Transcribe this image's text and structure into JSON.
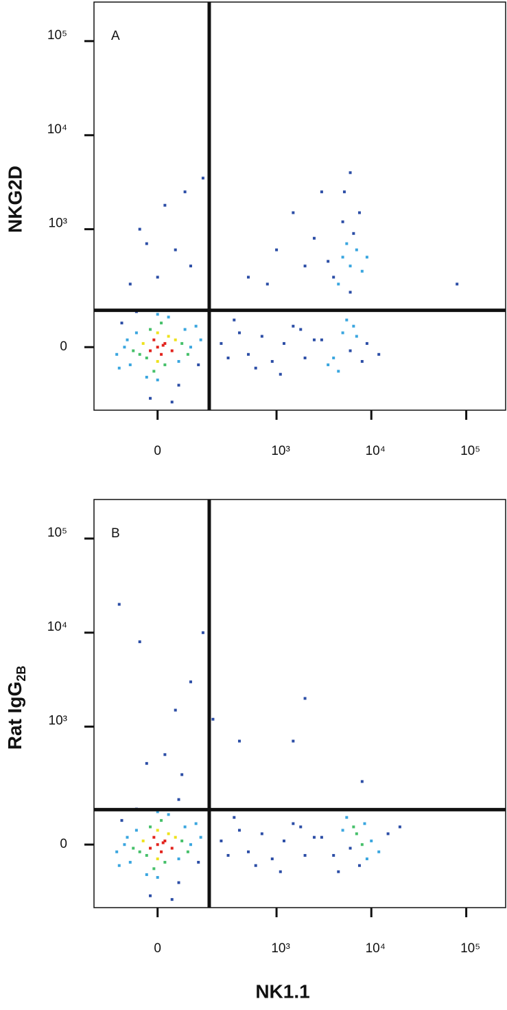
{
  "chart_data": [
    {
      "type": "scatter",
      "panel_label": "A",
      "ylabel": "NKG2D",
      "xscale": "biexponential",
      "yscale": "biexponential",
      "xlim": [
        -250,
        260000
      ],
      "ylim": [
        -250,
        260000
      ],
      "xticks": [
        0,
        {
          "value": 1000,
          "label": "10³"
        },
        {
          "value": 10000,
          "label": "10⁴"
        },
        {
          "value": 100000,
          "label": "10⁵"
        }
      ],
      "yticks": [
        0,
        {
          "value": 1000,
          "label": "10³"
        },
        {
          "value": 10000,
          "label": "10⁴"
        },
        {
          "value": 100000,
          "label": "10⁵"
        }
      ],
      "gates": {
        "x": 180,
        "y": 115
      },
      "colors": [
        "#2c4ea6",
        "#3aa6df",
        "#46c06a",
        "#eee21c",
        "#e2231d"
      ],
      "x": [
        0,
        20,
        -20,
        10,
        -10,
        30,
        -30,
        40,
        -40,
        0,
        0,
        50,
        -50,
        20,
        -20,
        60,
        -60,
        70,
        -70,
        10,
        -10,
        80,
        -80,
        90,
        -90,
        30,
        -30,
        100,
        -100,
        0,
        0,
        120,
        -120,
        130,
        -110,
        60,
        -60,
        140,
        -130,
        15,
        250,
        300,
        400,
        500,
        700,
        900,
        1200,
        1500,
        2000,
        2500,
        350,
        600,
        1100,
        1800,
        3000,
        4000,
        5000,
        6000,
        7000,
        8000,
        5500,
        4500,
        9000,
        12000,
        6500,
        3500,
        4000,
        5000,
        6000,
        5500,
        4500,
        7000,
        6500,
        5000,
        8000,
        3500,
        6000,
        7500,
        9000,
        5200,
        6000,
        0,
        50,
        -50,
        100,
        -80,
        20,
        -30,
        80,
        150,
        500,
        1000,
        2000,
        1500,
        3000,
        800,
        2500,
        -20,
        40,
        80000
      ],
      "y": [
        0,
        10,
        -10,
        -20,
        20,
        30,
        -30,
        -10,
        10,
        40,
        -40,
        20,
        -20,
        -50,
        50,
        -40,
        40,
        10,
        -10,
        70,
        -70,
        50,
        -50,
        -20,
        20,
        90,
        -90,
        0,
        0,
        100,
        -100,
        60,
        -60,
        -50,
        70,
        -120,
        110,
        20,
        -20,
        5,
        10,
        -30,
        40,
        -20,
        30,
        -40,
        10,
        60,
        -30,
        20,
        80,
        -60,
        -80,
        50,
        20,
        -30,
        40,
        -10,
        30,
        -40,
        80,
        -70,
        10,
        -20,
        60,
        -50,
        300,
        500,
        400,
        700,
        250,
        600,
        900,
        1200,
        350,
        450,
        200,
        1500,
        500,
        2500,
        4000,
        300,
        600,
        1000,
        400,
        250,
        1800,
        700,
        2500,
        3500,
        300,
        600,
        400,
        1500,
        2500,
        250,
        800,
        -180,
        -200,
        250
      ]
    },
    {
      "type": "scatter",
      "panel_label": "B",
      "ylabel": "Rat IgG",
      "ylabel_sub": "2B",
      "xlabel": "NK1.1",
      "xscale": "biexponential",
      "yscale": "biexponential",
      "xlim": [
        -250,
        260000
      ],
      "ylim": [
        -250,
        260000
      ],
      "xticks": [
        0,
        {
          "value": 1000,
          "label": "10³"
        },
        {
          "value": 10000,
          "label": "10⁴"
        },
        {
          "value": 100000,
          "label": "10⁵"
        }
      ],
      "yticks": [
        0,
        {
          "value": 1000,
          "label": "10³"
        },
        {
          "value": 10000,
          "label": "10⁴"
        },
        {
          "value": 100000,
          "label": "10⁵"
        }
      ],
      "gates": {
        "x": 180,
        "y": 108
      },
      "colors": [
        "#2c4ea6",
        "#3aa6df",
        "#46c06a",
        "#eee21c",
        "#e2231d"
      ],
      "x": [
        0,
        20,
        -20,
        10,
        -10,
        30,
        -30,
        40,
        -40,
        0,
        0,
        50,
        -50,
        20,
        -20,
        60,
        -60,
        70,
        -70,
        10,
        -10,
        80,
        -80,
        90,
        -90,
        30,
        -30,
        100,
        -100,
        0,
        0,
        120,
        -120,
        130,
        -110,
        60,
        -60,
        140,
        -130,
        15,
        250,
        300,
        400,
        500,
        700,
        900,
        1200,
        1500,
        2000,
        2500,
        350,
        600,
        1100,
        1800,
        3000,
        4000,
        5000,
        6000,
        7000,
        8000,
        9000,
        10000,
        5500,
        7500,
        6500,
        12000,
        15000,
        4500,
        8500,
        -120,
        -50,
        150,
        100,
        50,
        20,
        70,
        200,
        2000,
        1500,
        400,
        20000,
        8000,
        -30,
        60,
        -20,
        40
      ],
      "y": [
        0,
        10,
        -10,
        -20,
        20,
        30,
        -30,
        -10,
        10,
        40,
        -40,
        20,
        -20,
        -50,
        50,
        -40,
        40,
        10,
        -10,
        70,
        -70,
        50,
        -50,
        -20,
        20,
        90,
        -90,
        0,
        0,
        100,
        -100,
        60,
        -60,
        -50,
        70,
        -120,
        110,
        20,
        -20,
        5,
        10,
        -30,
        40,
        -20,
        30,
        -40,
        10,
        60,
        -30,
        20,
        80,
        -60,
        -80,
        50,
        20,
        -30,
        40,
        -10,
        30,
        0,
        -40,
        10,
        80,
        -60,
        50,
        -20,
        30,
        -80,
        60,
        20000,
        8000,
        10000,
        3000,
        1500,
        500,
        300,
        1200,
        2000,
        700,
        700,
        50,
        250,
        400,
        150,
        -180,
        -200
      ]
    }
  ]
}
